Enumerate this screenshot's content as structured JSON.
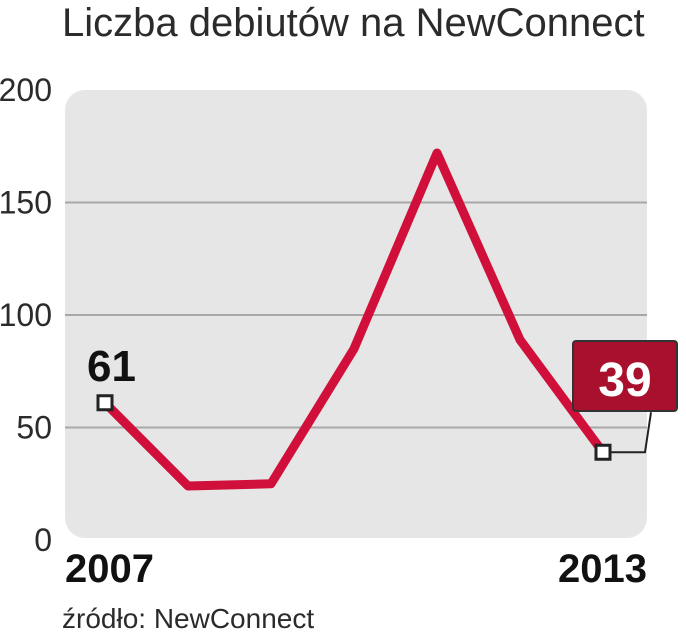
{
  "title": "Liczba debiutów na NewConnect",
  "source": "źródło: NewConnect",
  "colors": {
    "line": "#d0103a",
    "panel": "#e6e6e6",
    "grid": "#a8a8a8",
    "callout_fill": "#a8102e",
    "text": "#2b2b2b"
  },
  "chart_data": {
    "type": "line",
    "x": [
      2007,
      2008,
      2009,
      2010,
      2011,
      2012,
      2013
    ],
    "x_tick_labels": [
      "2007",
      "2013"
    ],
    "y_ticks": [
      "0",
      "50",
      "100",
      "150",
      "200"
    ],
    "ylim": [
      0,
      200
    ],
    "series": [
      {
        "values": [
          61,
          24,
          25,
          85,
          172,
          89,
          39
        ]
      }
    ],
    "data_labels": {
      "first": "61",
      "last": "39"
    },
    "grid": true
  }
}
